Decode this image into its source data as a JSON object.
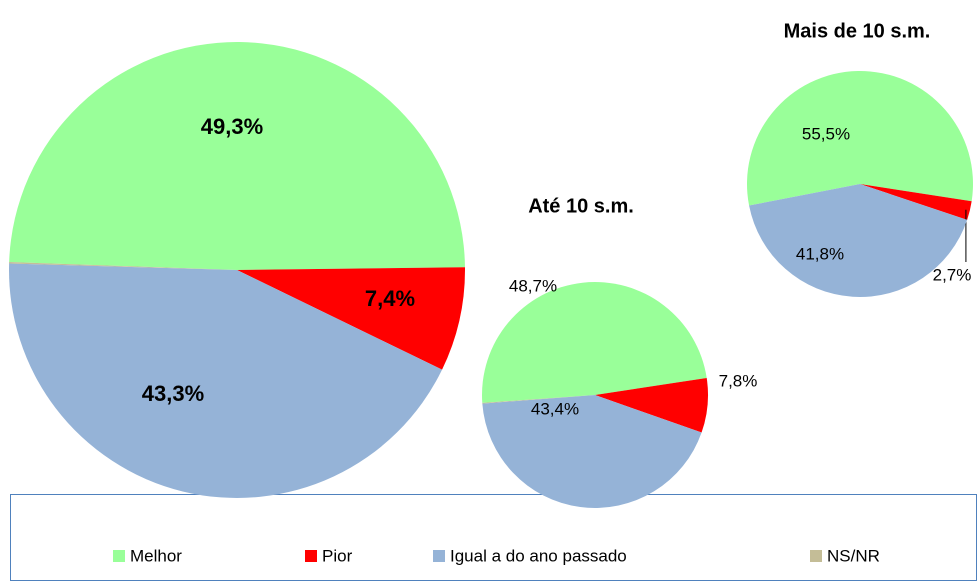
{
  "chart_data": [
    {
      "type": "pie",
      "categories": [
        "Melhor",
        "Pior",
        "Igual a do ano passado",
        "NS/NR"
      ],
      "values": [
        49.3,
        7.4,
        43.3,
        0.1
      ],
      "value_labels": [
        "49,3%",
        "7,4%",
        "43,3%",
        null
      ],
      "colors": [
        "#99ff99",
        "#ff0000",
        "#95b3d7",
        "#c4bd97"
      ]
    },
    {
      "type": "pie",
      "title": "Até 10 s.m.",
      "categories": [
        "Melhor",
        "Pior",
        "Igual a do ano passado",
        "NS/NR"
      ],
      "values": [
        48.7,
        7.8,
        43.4,
        0.1
      ],
      "value_labels": [
        "48,7%",
        "7,8%",
        "43,4%",
        null
      ],
      "colors": [
        "#99ff99",
        "#ff0000",
        "#95b3d7",
        "#c4bd97"
      ]
    },
    {
      "type": "pie",
      "title": "Mais de 10 s.m.",
      "categories": [
        "Melhor",
        "Pior",
        "Igual a do ano passado",
        "NS/NR"
      ],
      "values": [
        55.5,
        2.7,
        41.8,
        0
      ],
      "value_labels": [
        "55,5%",
        "2,7%",
        "41,8%",
        null
      ],
      "colors": [
        "#99ff99",
        "#ff0000",
        "#95b3d7",
        "#c4bd97"
      ]
    }
  ]
}
